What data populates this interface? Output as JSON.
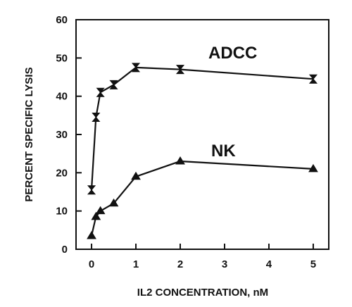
{
  "chart_data": {
    "type": "line",
    "title": "",
    "xlabel": "IL2 CONCENTRATION, nM",
    "ylabel": "PERCENT SPECIFIC LYSIS",
    "ylim": [
      0,
      60
    ],
    "yticks": [
      0,
      10,
      20,
      30,
      40,
      50,
      60
    ],
    "xticks": [
      {
        "label": "0",
        "value": 0
      },
      {
        "label": "1",
        "value": 1
      },
      {
        "label": "2",
        "value": 2
      },
      {
        "label": "3",
        "value": 3
      },
      {
        "label": "4",
        "value": 4
      },
      {
        "label": "5",
        "value": 5
      }
    ],
    "xlim": [
      -0.35,
      5.35
    ],
    "grid": false,
    "legend": "none",
    "series": [
      {
        "name": "ADCC",
        "marker": "hourglass",
        "points": [
          {
            "x": 0,
            "y": 15.5
          },
          {
            "x": 0.1,
            "y": 34.5
          },
          {
            "x": 0.2,
            "y": 41
          },
          {
            "x": 0.5,
            "y": 43
          },
          {
            "x": 1,
            "y": 47.5
          },
          {
            "x": 2,
            "y": 47
          },
          {
            "x": 5,
            "y": 44.5
          }
        ]
      },
      {
        "name": "NK",
        "marker": "triangle",
        "points": [
          {
            "x": 0,
            "y": 3.5
          },
          {
            "x": 0.1,
            "y": 8.5
          },
          {
            "x": 0.2,
            "y": 10
          },
          {
            "x": 0.5,
            "y": 12
          },
          {
            "x": 1,
            "y": 19
          },
          {
            "x": 2,
            "y": 23
          },
          {
            "x": 5,
            "y": 21
          }
        ]
      }
    ]
  }
}
